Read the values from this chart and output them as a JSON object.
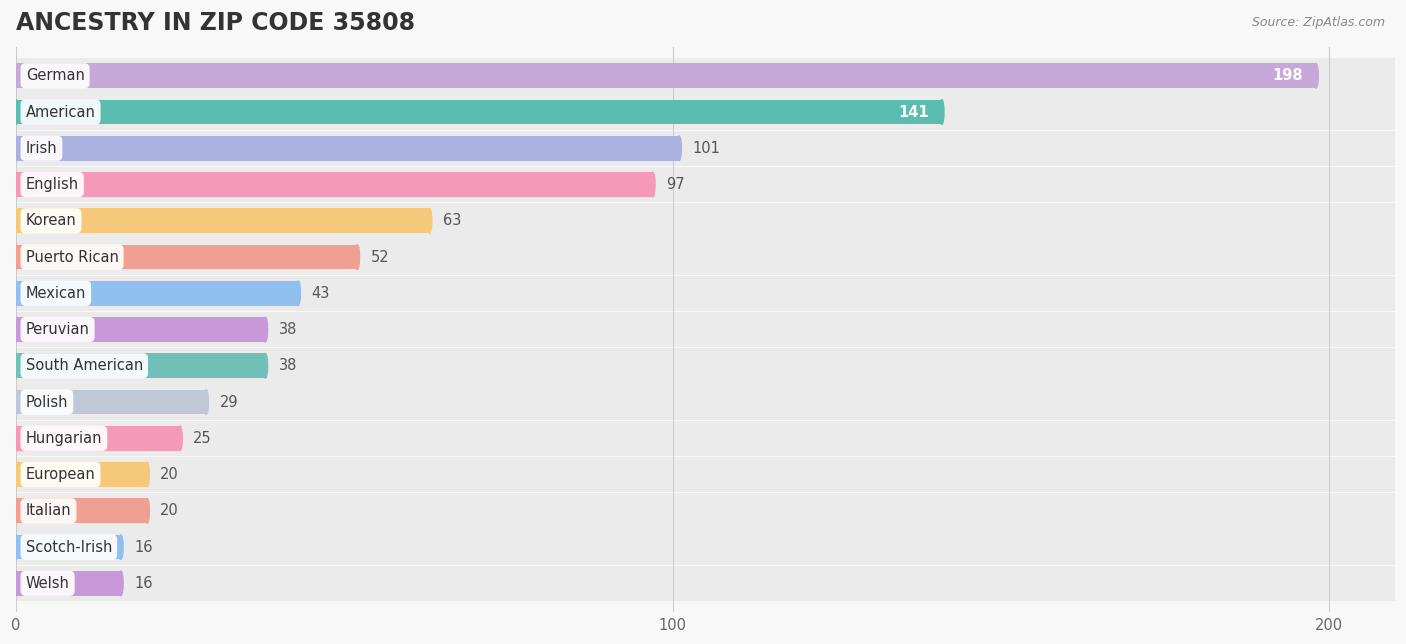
{
  "title": "ANCESTRY IN ZIP CODE 35808",
  "source": "Source: ZipAtlas.com",
  "categories": [
    "German",
    "American",
    "Irish",
    "English",
    "Korean",
    "Puerto Rican",
    "Mexican",
    "Peruvian",
    "South American",
    "Polish",
    "Hungarian",
    "European",
    "Italian",
    "Scotch-Irish",
    "Welsh"
  ],
  "values": [
    198,
    141,
    101,
    97,
    63,
    52,
    43,
    38,
    38,
    29,
    25,
    20,
    20,
    16,
    16
  ],
  "bar_colors": [
    "#c8a8d8",
    "#5bbcb0",
    "#aab0e0",
    "#f599b8",
    "#f5c87a",
    "#f0a090",
    "#90c0f0",
    "#c898d8",
    "#70c0b8",
    "#c0c8d8",
    "#f599b8",
    "#f5c87a",
    "#f0a090",
    "#90c0f0",
    "#c898d8"
  ],
  "xlim_max": 210,
  "background_color": "#f8f8f8",
  "row_bg_color": "#ebebeb",
  "title_fontsize": 17,
  "label_fontsize": 10.5,
  "value_fontsize": 10.5
}
